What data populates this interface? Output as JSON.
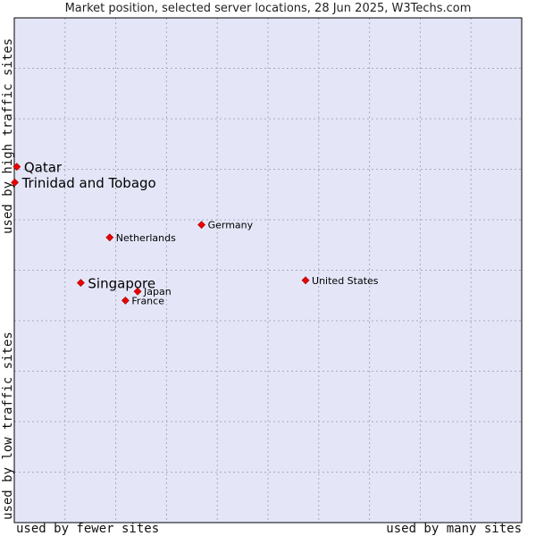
{
  "chart_data": {
    "type": "scatter",
    "title": "Market position, selected server locations, 28 Jun 2025, W3Techs.com",
    "xlabel_low": "used by fewer sites",
    "xlabel_high": "used by many sites",
    "ylabel_low": "used by low traffic sites",
    "ylabel_high": "used by high traffic sites",
    "xlim": [
      0,
      100
    ],
    "ylim": [
      0,
      100
    ],
    "grid": true,
    "colors": {
      "plot_bg": "#e4e6f8",
      "grid": "#a8aabe",
      "point": "#ee0000",
      "point_stroke": "#990000",
      "border": "#000000"
    },
    "points": [
      {
        "label": "Qatar",
        "x": 0.5,
        "y": 70.5,
        "highlight": true
      },
      {
        "label": "Trinidad and Tobago",
        "x": 0.1,
        "y": 67.4,
        "highlight": true
      },
      {
        "label": "Germany",
        "x": 36.9,
        "y": 59.0,
        "highlight": false
      },
      {
        "label": "Netherlands",
        "x": 18.8,
        "y": 56.5,
        "highlight": false
      },
      {
        "label": "United States",
        "x": 57.4,
        "y": 48.0,
        "highlight": false
      },
      {
        "label": "Singapore",
        "x": 13.1,
        "y": 47.5,
        "highlight": true
      },
      {
        "label": "Japan",
        "x": 24.3,
        "y": 45.8,
        "highlight": false
      },
      {
        "label": "France",
        "x": 21.9,
        "y": 44.0,
        "highlight": false
      }
    ]
  }
}
